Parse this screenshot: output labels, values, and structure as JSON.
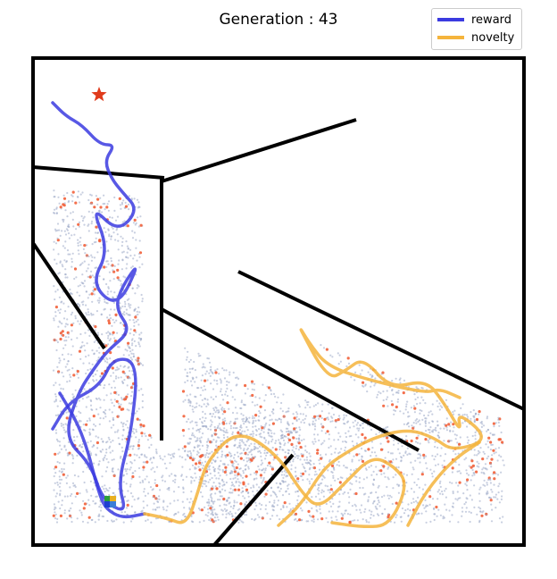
{
  "chart_data": {
    "type": "scatter",
    "title": "Generation : 43",
    "legend_position": "top-right",
    "grid": false,
    "xlim": [
      0,
      550
    ],
    "ylim": [
      0,
      545
    ],
    "goal": {
      "x": 74,
      "y": 504,
      "marker": "star",
      "color": "#e03b1c"
    },
    "start": {
      "x": 87,
      "y": 44
    },
    "series": [
      {
        "name": "reward",
        "color": "#3b3be0",
        "paths": [
          [
            [
              22,
              495
            ],
            [
              37,
              480
            ],
            [
              55,
              470
            ],
            [
              75,
              448
            ],
            [
              92,
              448
            ],
            [
              80,
              430
            ],
            [
              88,
              410
            ],
            [
              100,
              395
            ],
            [
              118,
              375
            ],
            [
              95,
              350
            ],
            [
              65,
              380
            ],
            [
              85,
              330
            ],
            [
              65,
              292
            ],
            [
              95,
              265
            ],
            [
              120,
              318
            ],
            [
              100,
              290
            ],
            [
              92,
              265
            ],
            [
              110,
              240
            ],
            [
              84,
              218
            ],
            [
              70,
              200
            ],
            [
              50,
              170
            ],
            [
              35,
              120
            ],
            [
              65,
              90
            ],
            [
              78,
              50
            ],
            [
              105,
              35
            ],
            [
              95,
              70
            ],
            [
              110,
              125
            ],
            [
              118,
              205
            ],
            [
              90,
              210
            ],
            [
              75,
              178
            ],
            [
              40,
              160
            ],
            [
              22,
              130
            ]
          ],
          [
            [
              30,
              170
            ],
            [
              48,
              140
            ],
            [
              60,
              110
            ],
            [
              68,
              80
            ],
            [
              75,
              55
            ],
            [
              82,
              40
            ],
            [
              100,
              30
            ],
            [
              125,
              35
            ]
          ]
        ]
      },
      {
        "name": "novelty",
        "color": "#f5b43c",
        "paths": [
          [
            [
              125,
              35
            ],
            [
              150,
              30
            ],
            [
              172,
              22
            ],
            [
              185,
              60
            ],
            [
              195,
              95
            ],
            [
              230,
              130
            ],
            [
              275,
              100
            ],
            [
              300,
              60
            ],
            [
              320,
              40
            ],
            [
              350,
              70
            ],
            [
              380,
              100
            ],
            [
              405,
              88
            ],
            [
              420,
              68
            ],
            [
              400,
              22
            ],
            [
              370,
              20
            ],
            [
              335,
              25
            ]
          ],
          [
            [
              275,
              22
            ],
            [
              300,
              45
            ],
            [
              325,
              85
            ],
            [
              345,
              100
            ],
            [
              380,
              120
            ],
            [
              420,
              130
            ],
            [
              450,
              120
            ],
            [
              470,
              105
            ],
            [
              512,
              118
            ],
            [
              475,
              150
            ],
            [
              480,
              125
            ],
            [
              460,
              160
            ],
            [
              440,
              185
            ],
            [
              400,
              175
            ],
            [
              370,
              210
            ],
            [
              350,
              195
            ],
            [
              330,
              185
            ],
            [
              295,
              250
            ],
            [
              310,
              225
            ],
            [
              330,
              200
            ],
            [
              375,
              185
            ],
            [
              440,
              170
            ],
            [
              455,
              175
            ],
            [
              478,
              165
            ]
          ],
          [
            [
              420,
              22
            ],
            [
              440,
              60
            ],
            [
              470,
              95
            ],
            [
              500,
              115
            ]
          ]
        ]
      }
    ],
    "colors": {
      "walls": "#000000",
      "points": "#9aa7c7",
      "highlights": "#f2603a"
    }
  }
}
